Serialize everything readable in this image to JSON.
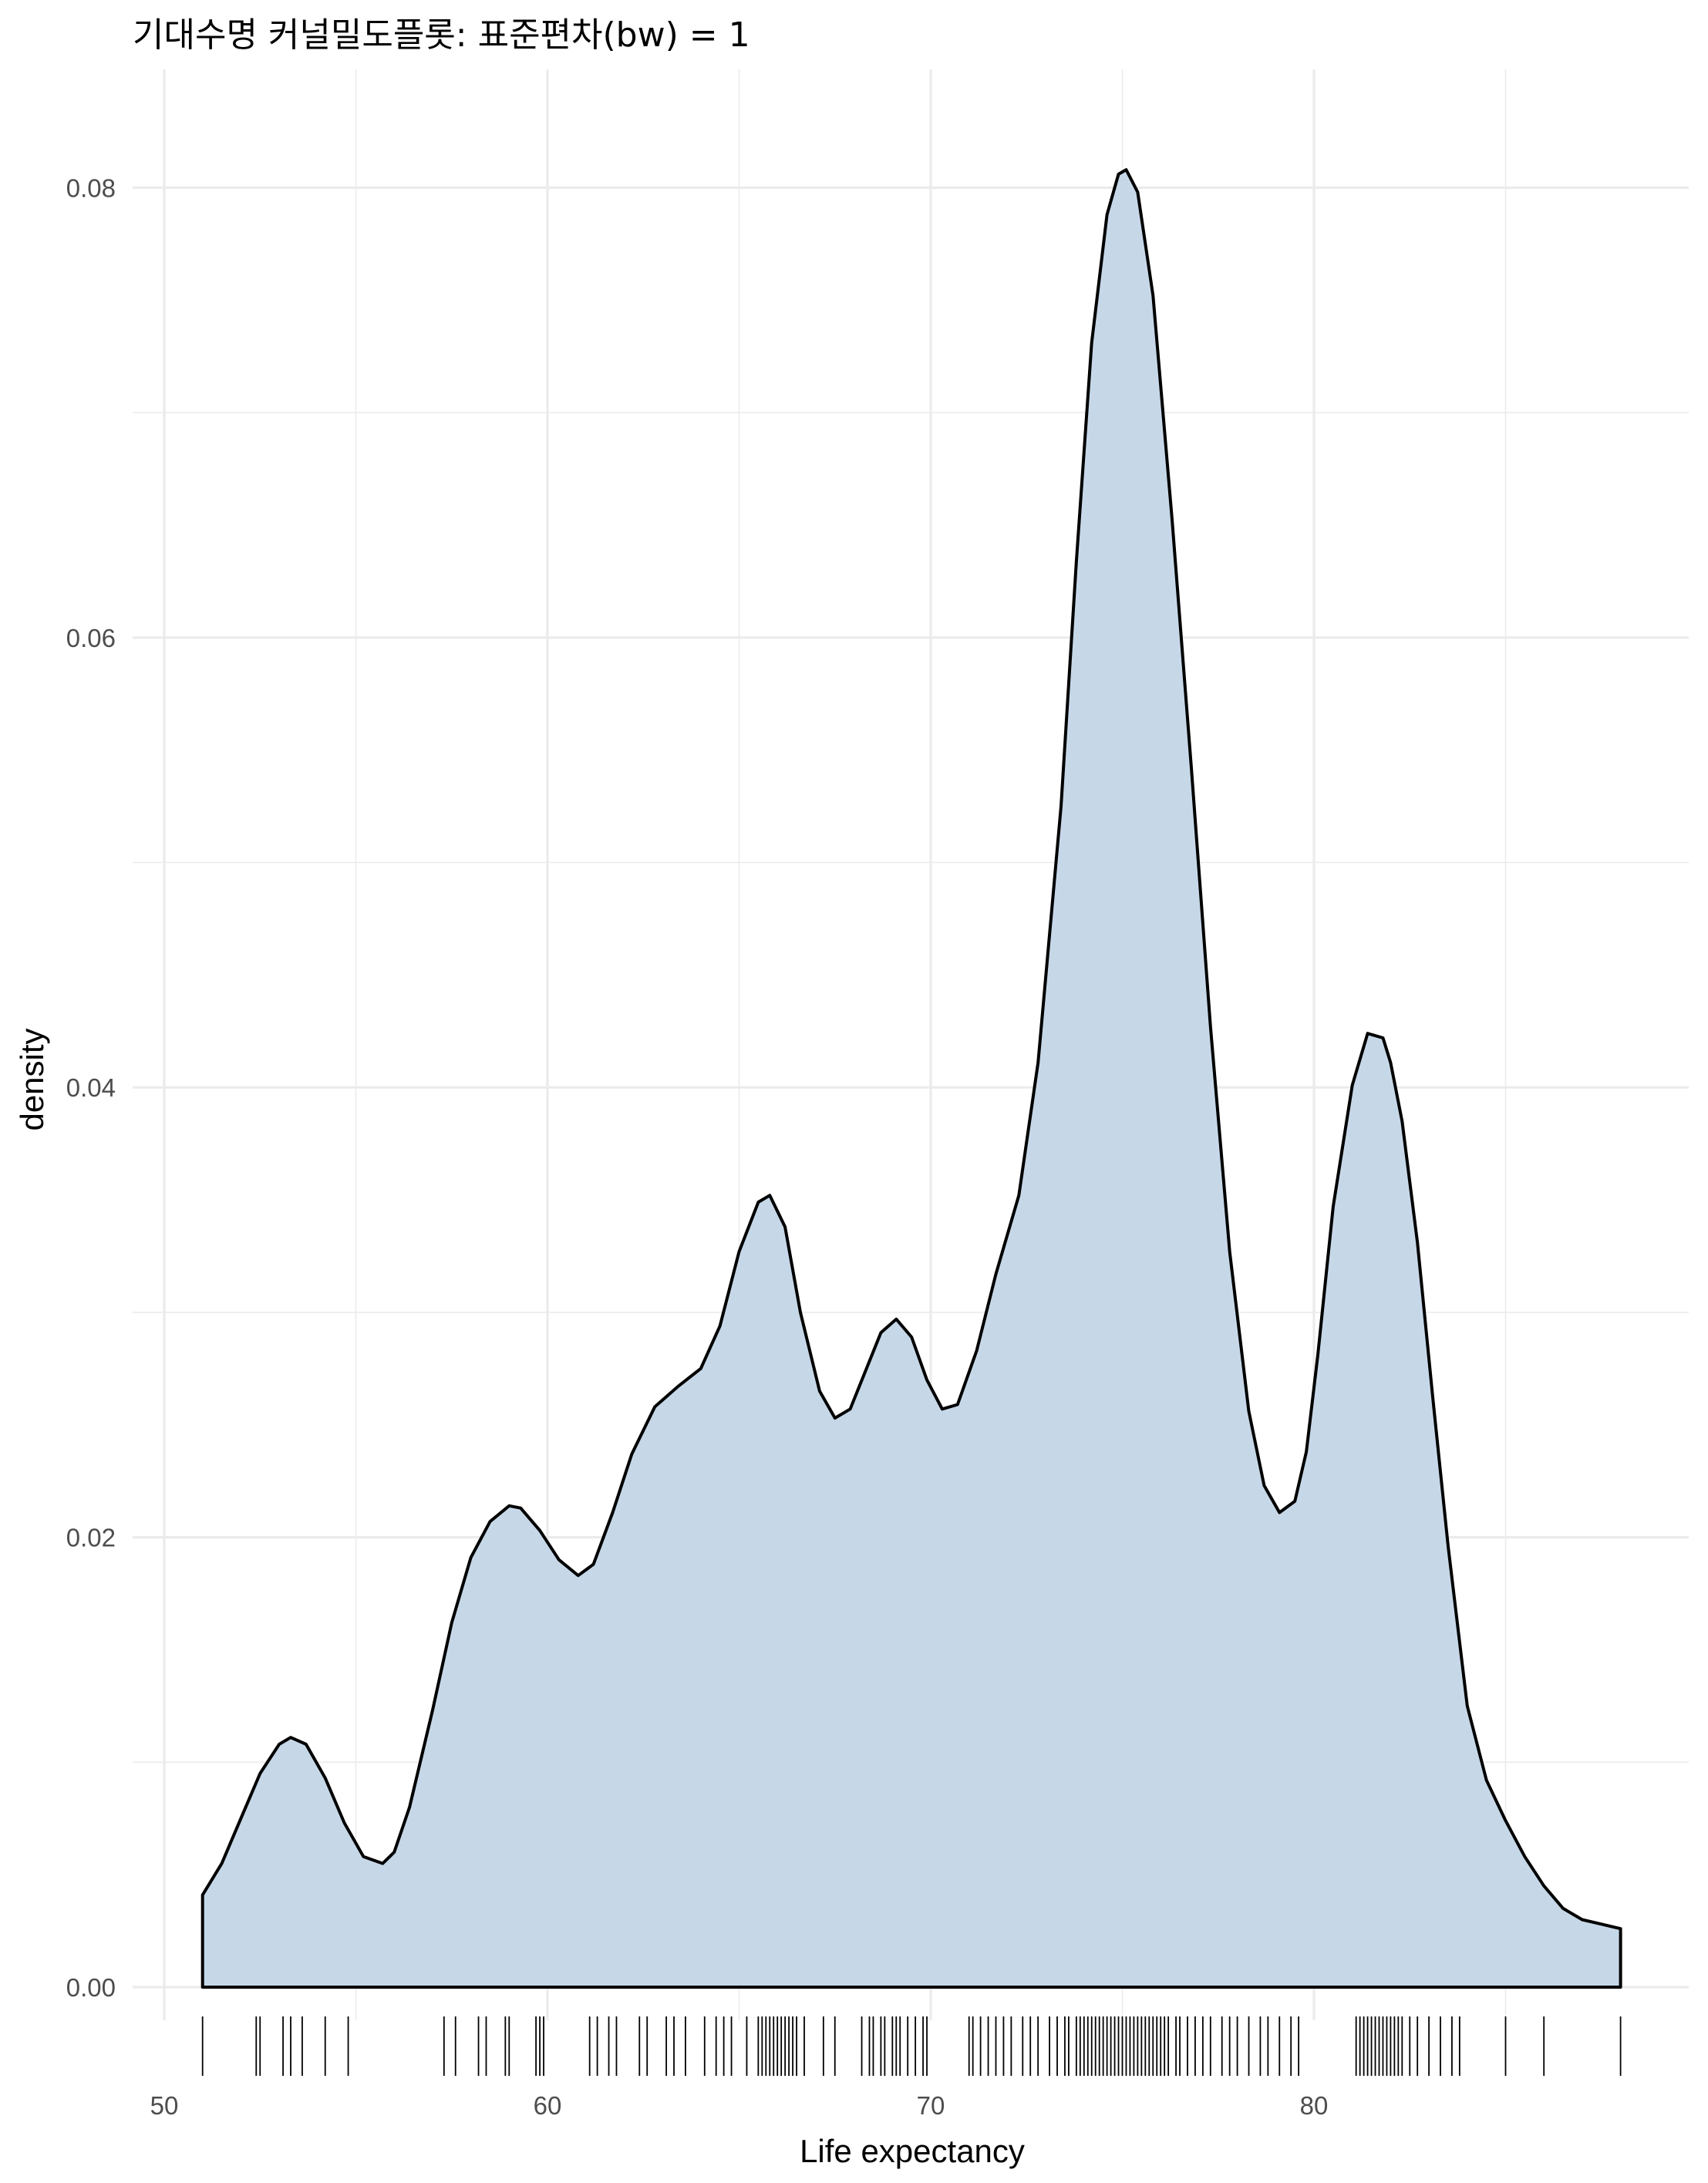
{
  "chart_data": {
    "type": "area",
    "title": "기대수명 커널밀도플롯: 표준편차(bw) = 1",
    "xlabel": "Life expectancy",
    "ylabel": "density",
    "xlim": [
      51,
      88
    ],
    "ylim": [
      0,
      0.08
    ],
    "x_ticks": [
      "50",
      "60",
      "70",
      "80"
    ],
    "y_ticks": [
      "0.00",
      "0.02",
      "0.04",
      "0.06",
      "0.08"
    ],
    "grid": true,
    "fill_color": "#c6d8e8",
    "line_color": "#000000",
    "x": [
      51.0,
      51.5,
      52.0,
      52.5,
      53.0,
      53.3,
      53.7,
      54.2,
      54.7,
      55.2,
      55.7,
      56.0,
      56.4,
      57.0,
      57.5,
      58.0,
      58.5,
      59.0,
      59.3,
      59.8,
      60.3,
      60.8,
      61.2,
      61.7,
      62.2,
      62.8,
      63.4,
      64.0,
      64.5,
      65.0,
      65.5,
      65.8,
      66.2,
      66.6,
      67.1,
      67.5,
      67.9,
      68.3,
      68.7,
      69.1,
      69.5,
      69.9,
      70.3,
      70.7,
      71.2,
      71.7,
      72.3,
      72.8,
      73.4,
      73.8,
      74.2,
      74.6,
      74.9,
      75.1,
      75.4,
      75.8,
      76.3,
      76.8,
      77.3,
      77.8,
      78.3,
      78.7,
      79.1,
      79.5,
      79.8,
      80.1,
      80.5,
      81.0,
      81.4,
      81.8,
      82.0,
      82.3,
      82.7,
      83.1,
      83.5,
      84.0,
      84.5,
      85.0,
      85.5,
      86.0,
      86.5,
      87.0,
      87.5,
      88.0
    ],
    "y": [
      0.0041,
      0.0055,
      0.0075,
      0.0095,
      0.0108,
      0.0111,
      0.0108,
      0.0093,
      0.0073,
      0.0058,
      0.0055,
      0.006,
      0.008,
      0.0123,
      0.0162,
      0.0191,
      0.0207,
      0.0214,
      0.0213,
      0.0203,
      0.019,
      0.0183,
      0.0188,
      0.0211,
      0.0237,
      0.0258,
      0.0267,
      0.0275,
      0.0294,
      0.0327,
      0.0349,
      0.0352,
      0.0338,
      0.03,
      0.0265,
      0.0253,
      0.0257,
      0.0274,
      0.0291,
      0.0297,
      0.0289,
      0.027,
      0.0257,
      0.0259,
      0.0283,
      0.0317,
      0.0352,
      0.0411,
      0.0525,
      0.0634,
      0.0731,
      0.0788,
      0.0806,
      0.0808,
      0.0798,
      0.0752,
      0.0652,
      0.0542,
      0.0427,
      0.0327,
      0.0256,
      0.0223,
      0.0211,
      0.0216,
      0.0238,
      0.0281,
      0.0347,
      0.0401,
      0.0424,
      0.0422,
      0.0411,
      0.0385,
      0.0331,
      0.0262,
      0.0196,
      0.0125,
      0.0092,
      0.0074,
      0.0058,
      0.0045,
      0.0035,
      0.003,
      0.0028,
      0.0026
    ],
    "rug": [
      51.0,
      52.4,
      52.5,
      53.1,
      53.3,
      53.6,
      54.2,
      54.8,
      57.3,
      57.6,
      58.2,
      58.4,
      58.9,
      59.0,
      59.7,
      59.8,
      59.9,
      61.1,
      61.3,
      61.6,
      61.8,
      62.4,
      62.6,
      63.1,
      63.3,
      63.6,
      64.1,
      64.4,
      64.6,
      64.8,
      65.2,
      65.5,
      65.6,
      65.7,
      65.8,
      65.9,
      66.0,
      66.1,
      66.2,
      66.3,
      66.4,
      66.5,
      66.7,
      67.2,
      67.5,
      68.2,
      68.4,
      68.5,
      68.7,
      68.8,
      69.0,
      69.1,
      69.2,
      69.4,
      69.6,
      69.8,
      69.9,
      71.0,
      71.1,
      71.3,
      71.5,
      71.7,
      71.9,
      72.1,
      72.4,
      72.6,
      72.8,
      73.1,
      73.3,
      73.5,
      73.6,
      73.8,
      73.9,
      74.0,
      74.1,
      74.2,
      74.3,
      74.4,
      74.5,
      74.6,
      74.7,
      74.8,
      74.9,
      75.0,
      75.1,
      75.2,
      75.3,
      75.4,
      75.5,
      75.6,
      75.7,
      75.8,
      75.9,
      76.0,
      76.1,
      76.2,
      76.4,
      76.5,
      76.7,
      76.9,
      77.1,
      77.3,
      77.6,
      77.8,
      78.0,
      78.3,
      78.6,
      78.8,
      79.1,
      79.4,
      79.6,
      81.1,
      81.2,
      81.3,
      81.4,
      81.5,
      81.6,
      81.7,
      81.8,
      81.9,
      82.0,
      82.1,
      82.2,
      82.3,
      82.5,
      82.7,
      83.0,
      83.3,
      83.6,
      83.8,
      85.0,
      86.0,
      88.0
    ]
  }
}
